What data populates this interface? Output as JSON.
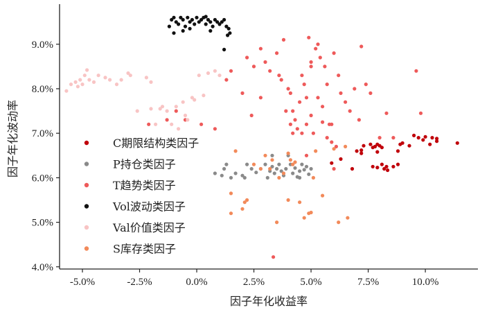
{
  "chart_data": {
    "type": "scatter",
    "title": "",
    "xlabel": "因子年化收益率",
    "ylabel": "因子年化波动率",
    "xlim": [
      -6.0,
      12.3
    ],
    "ylim": [
      3.95,
      9.9
    ],
    "x_ticks": [
      {
        "value": -5.0,
        "label": "-5.0%"
      },
      {
        "value": -2.5,
        "label": "-2.5%"
      },
      {
        "value": 0.0,
        "label": "0.0%"
      },
      {
        "value": 2.5,
        "label": "2.5%"
      },
      {
        "value": 5.0,
        "label": "5.0%"
      },
      {
        "value": 7.5,
        "label": "7.5%"
      },
      {
        "value": 10.0,
        "label": "10.0%"
      }
    ],
    "y_ticks": [
      {
        "value": 4.0,
        "label": "4.0%"
      },
      {
        "value": 5.0,
        "label": "5.0%"
      },
      {
        "value": 6.0,
        "label": "6.0%"
      },
      {
        "value": 7.0,
        "label": "7.0%"
      },
      {
        "value": 8.0,
        "label": "8.0%"
      },
      {
        "value": 9.0,
        "label": "9.0%"
      }
    ],
    "grid": false,
    "legend_position": "left",
    "series": [
      {
        "name": "C期限结构类因子",
        "color": "#c0000a",
        "points": [
          [
            5.9,
            6.33
          ],
          [
            6.3,
            6.42
          ],
          [
            6.8,
            6.2
          ],
          [
            7.0,
            6.6
          ],
          [
            7.2,
            6.62
          ],
          [
            7.3,
            6.72
          ],
          [
            7.2,
            6.55
          ],
          [
            7.6,
            6.75
          ],
          [
            7.7,
            6.68
          ],
          [
            7.8,
            6.7
          ],
          [
            7.9,
            6.75
          ],
          [
            8.0,
            6.72
          ],
          [
            7.9,
            6.58
          ],
          [
            8.1,
            6.68
          ],
          [
            7.7,
            6.25
          ],
          [
            7.9,
            6.23
          ],
          [
            8.1,
            6.3
          ],
          [
            8.2,
            6.2
          ],
          [
            8.3,
            6.25
          ],
          [
            8.35,
            6.17
          ],
          [
            8.6,
            6.25
          ],
          [
            8.8,
            6.3
          ],
          [
            8.8,
            6.6
          ],
          [
            9.0,
            6.78
          ],
          [
            9.3,
            6.72
          ],
          [
            9.5,
            6.95
          ],
          [
            9.7,
            6.9
          ],
          [
            9.9,
            6.85
          ],
          [
            10.0,
            6.92
          ],
          [
            10.2,
            6.75
          ],
          [
            10.3,
            6.9
          ],
          [
            10.5,
            6.88
          ],
          [
            10.5,
            6.82
          ],
          [
            11.4,
            6.78
          ],
          [
            8.9,
            6.75
          ]
        ]
      },
      {
        "name": "P持仓类因子",
        "color": "#8a8a8a",
        "points": [
          [
            0.8,
            6.1
          ],
          [
            1.1,
            6.05
          ],
          [
            1.2,
            6.2
          ],
          [
            1.3,
            6.3
          ],
          [
            1.5,
            6.0
          ],
          [
            1.7,
            6.1
          ],
          [
            2.0,
            6.05
          ],
          [
            2.2,
            6.3
          ],
          [
            2.4,
            6.2
          ],
          [
            2.6,
            6.12
          ],
          [
            2.8,
            6.2
          ],
          [
            3.0,
            6.3
          ],
          [
            3.1,
            6.0
          ],
          [
            3.2,
            6.15
          ],
          [
            3.3,
            6.25
          ],
          [
            3.4,
            6.1
          ],
          [
            3.5,
            6.2
          ],
          [
            3.6,
            6.3
          ],
          [
            3.7,
            6.15
          ],
          [
            3.8,
            6.05
          ],
          [
            3.9,
            6.2
          ],
          [
            4.0,
            6.5
          ],
          [
            4.1,
            6.3
          ],
          [
            4.2,
            6.1
          ],
          [
            4.3,
            6.22
          ],
          [
            4.4,
            6.02
          ],
          [
            4.5,
            6.15
          ],
          [
            4.6,
            6.3
          ],
          [
            4.7,
            6.18
          ],
          [
            4.8,
            6.25
          ],
          [
            4.9,
            6.08
          ],
          [
            5.0,
            6.2
          ],
          [
            3.3,
            6.5
          ],
          [
            2.1,
            6.0
          ],
          [
            4.5,
            6.0
          ]
        ]
      },
      {
        "name": "T趋势类因子",
        "color": "#ee5a5a",
        "points": [
          [
            -2.1,
            7.2
          ],
          [
            -1.3,
            7.3
          ],
          [
            -0.9,
            7.5
          ],
          [
            -0.5,
            7.3
          ],
          [
            0.2,
            7.2
          ],
          [
            0.8,
            7.1
          ],
          [
            1.3,
            8.2
          ],
          [
            1.5,
            8.4
          ],
          [
            2.0,
            7.9
          ],
          [
            2.2,
            8.7
          ],
          [
            2.5,
            8.5
          ],
          [
            2.8,
            8.9
          ],
          [
            3.0,
            8.6
          ],
          [
            3.2,
            8.4
          ],
          [
            3.5,
            8.8
          ],
          [
            3.7,
            8.2
          ],
          [
            3.8,
            9.1
          ],
          [
            4.0,
            8.0
          ],
          [
            4.1,
            7.9
          ],
          [
            4.2,
            7.5
          ],
          [
            4.3,
            7.3
          ],
          [
            4.4,
            7.1
          ],
          [
            4.5,
            7.7
          ],
          [
            4.6,
            8.3
          ],
          [
            4.7,
            8.1
          ],
          [
            4.8,
            7.8
          ],
          [
            4.9,
            9.15
          ],
          [
            5.0,
            8.6
          ],
          [
            5.1,
            7.0
          ],
          [
            5.2,
            8.9
          ],
          [
            5.3,
            9.0
          ],
          [
            5.4,
            8.7
          ],
          [
            5.5,
            7.6
          ],
          [
            5.6,
            8.5
          ],
          [
            5.7,
            8.1
          ],
          [
            5.8,
            7.2
          ],
          [
            5.9,
            6.8
          ],
          [
            6.0,
            8.8
          ],
          [
            6.1,
            6.7
          ],
          [
            6.2,
            8.3
          ],
          [
            6.3,
            7.9
          ],
          [
            6.5,
            7.7
          ],
          [
            6.7,
            7.5
          ],
          [
            6.9,
            8.0
          ],
          [
            7.1,
            7.3
          ],
          [
            7.2,
            8.95
          ],
          [
            7.4,
            8.1
          ],
          [
            7.6,
            7.9
          ],
          [
            8.0,
            6.9
          ],
          [
            8.3,
            7.45
          ],
          [
            8.6,
            6.9
          ],
          [
            9.6,
            8.4
          ],
          [
            9.8,
            7.45
          ],
          [
            3.35,
            4.22
          ],
          [
            4.8,
            6.5
          ],
          [
            5.7,
            6.9
          ],
          [
            6.0,
            6.2
          ],
          [
            5.0,
            7.4
          ],
          [
            4.6,
            7.0
          ],
          [
            5.5,
            7.25
          ],
          [
            4.2,
            7.0
          ],
          [
            2.8,
            7.8
          ],
          [
            3.9,
            7.5
          ],
          [
            4.1,
            7.2
          ],
          [
            4.8,
            7.2
          ],
          [
            2.4,
            7.4
          ],
          [
            5.3,
            7.8
          ],
          [
            5.9,
            7.2
          ],
          [
            3.6,
            8.3
          ],
          [
            5.0,
            8.5
          ]
        ]
      },
      {
        "name": "Vol波动类因子",
        "color": "#111111",
        "points": [
          [
            -1.2,
            9.4
          ],
          [
            -1.1,
            9.55
          ],
          [
            -1.0,
            9.6
          ],
          [
            -0.9,
            9.5
          ],
          [
            -0.8,
            9.45
          ],
          [
            -0.7,
            9.6
          ],
          [
            -0.6,
            9.55
          ],
          [
            -0.5,
            9.4
          ],
          [
            -0.4,
            9.6
          ],
          [
            -0.3,
            9.5
          ],
          [
            -0.2,
            9.55
          ],
          [
            -0.1,
            9.45
          ],
          [
            0.0,
            9.6
          ],
          [
            0.1,
            9.5
          ],
          [
            0.2,
            9.55
          ],
          [
            0.3,
            9.6
          ],
          [
            0.4,
            9.45
          ],
          [
            0.5,
            9.55
          ],
          [
            0.6,
            9.5
          ],
          [
            0.7,
            9.4
          ],
          [
            0.8,
            9.55
          ],
          [
            0.9,
            9.5
          ],
          [
            1.0,
            9.45
          ],
          [
            1.1,
            9.5
          ],
          [
            1.2,
            9.55
          ],
          [
            1.3,
            9.4
          ],
          [
            1.4,
            9.35
          ],
          [
            1.45,
            9.25
          ],
          [
            1.35,
            9.2
          ],
          [
            0.6,
            9.3
          ],
          [
            -0.6,
            9.3
          ],
          [
            -1.0,
            9.25
          ],
          [
            -0.3,
            9.35
          ],
          [
            1.2,
            8.88
          ],
          [
            0.4,
            9.62
          ]
        ]
      },
      {
        "name": "Val价值类因子",
        "color": "#f8c4c4",
        "points": [
          [
            -5.7,
            7.95
          ],
          [
            -5.5,
            8.1
          ],
          [
            -5.3,
            8.15
          ],
          [
            -5.1,
            8.2
          ],
          [
            -5.0,
            8.1
          ],
          [
            -4.9,
            8.3
          ],
          [
            -4.7,
            8.2
          ],
          [
            -4.5,
            8.15
          ],
          [
            -4.3,
            8.3
          ],
          [
            -4.0,
            8.25
          ],
          [
            -3.8,
            8.2
          ],
          [
            -3.5,
            8.1
          ],
          [
            -3.3,
            8.2
          ],
          [
            -2.9,
            8.3
          ],
          [
            -2.6,
            7.5
          ],
          [
            -2.2,
            8.25
          ],
          [
            -2.0,
            7.55
          ],
          [
            -1.8,
            7.2
          ],
          [
            -1.5,
            7.6
          ],
          [
            -1.3,
            7.5
          ],
          [
            -1.1,
            7.2
          ],
          [
            -0.9,
            7.6
          ],
          [
            -0.8,
            7.1
          ],
          [
            -0.6,
            7.7
          ],
          [
            -0.5,
            7.4
          ],
          [
            -0.4,
            7.3
          ],
          [
            -0.2,
            7.8
          ],
          [
            -0.1,
            7.75
          ],
          [
            0.1,
            8.3
          ],
          [
            0.3,
            7.85
          ],
          [
            0.5,
            8.35
          ],
          [
            0.8,
            8.4
          ],
          [
            1.0,
            8.3
          ],
          [
            -2.0,
            8.15
          ],
          [
            -4.8,
            8.42
          ],
          [
            -5.2,
            8.05
          ],
          [
            -3.0,
            8.35
          ],
          [
            -1.6,
            7.55
          ]
        ]
      },
      {
        "name": "S库存类因子",
        "color": "#f28a5a",
        "points": [
          [
            1.5,
            5.65
          ],
          [
            1.7,
            6.6
          ],
          [
            2.0,
            5.3
          ],
          [
            2.2,
            5.5
          ],
          [
            2.5,
            6.3
          ],
          [
            2.8,
            6.2
          ],
          [
            3.0,
            6.5
          ],
          [
            3.3,
            6.4
          ],
          [
            3.5,
            5.0
          ],
          [
            3.6,
            6.0
          ],
          [
            3.8,
            6.1
          ],
          [
            4.0,
            5.5
          ],
          [
            4.1,
            6.4
          ],
          [
            4.2,
            6.3
          ],
          [
            4.3,
            6.35
          ],
          [
            4.5,
            5.45
          ],
          [
            4.7,
            5.1
          ],
          [
            4.9,
            5.2
          ],
          [
            5.0,
            5.22
          ],
          [
            5.1,
            6.0
          ],
          [
            5.2,
            6.6
          ],
          [
            5.5,
            5.6
          ],
          [
            6.0,
            6.65
          ],
          [
            6.2,
            5.0
          ],
          [
            6.5,
            6.7
          ],
          [
            6.6,
            5.1
          ],
          [
            1.5,
            5.2
          ],
          [
            3.2,
            6.2
          ],
          [
            4.0,
            6.55
          ],
          [
            2.1,
            5.45
          ]
        ]
      }
    ]
  }
}
